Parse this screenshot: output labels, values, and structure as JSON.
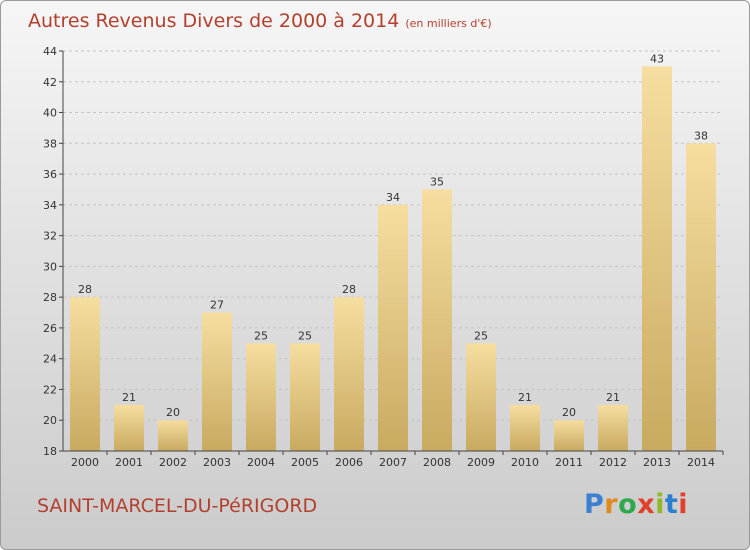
{
  "title": "Autres Revenus Divers de 2000 à 2014",
  "unit_label": "(en milliers d'€)",
  "commune": "SAINT-MARCEL-DU-PéRIGORD",
  "logo": {
    "letters": [
      "P",
      "r",
      "o",
      "x",
      "i",
      "t",
      "i"
    ],
    "colors": [
      "#3a7fd1",
      "#e08a1e",
      "#2ea84a",
      "#e0402a",
      "#8fb82a",
      "#2a7fd1",
      "#e0402a"
    ]
  },
  "colors": {
    "title": "#b3402e",
    "bar_light": "#f6dea0",
    "bar_dark": "#c8aa60",
    "grid": "#c4c4c4"
  },
  "chart_data": {
    "type": "bar",
    "categories": [
      "2000",
      "2001",
      "2002",
      "2003",
      "2004",
      "2005",
      "2006",
      "2007",
      "2008",
      "2009",
      "2010",
      "2011",
      "2012",
      "2013",
      "2014"
    ],
    "values": [
      28,
      21,
      20,
      27,
      25,
      25,
      28,
      34,
      35,
      25,
      21,
      20,
      21,
      43,
      38
    ],
    "ylim": [
      18,
      44
    ],
    "yticks": [
      18,
      20,
      22,
      24,
      26,
      28,
      30,
      32,
      34,
      36,
      38,
      40,
      42,
      44
    ],
    "grid": true,
    "xlabel": "",
    "ylabel": ""
  }
}
